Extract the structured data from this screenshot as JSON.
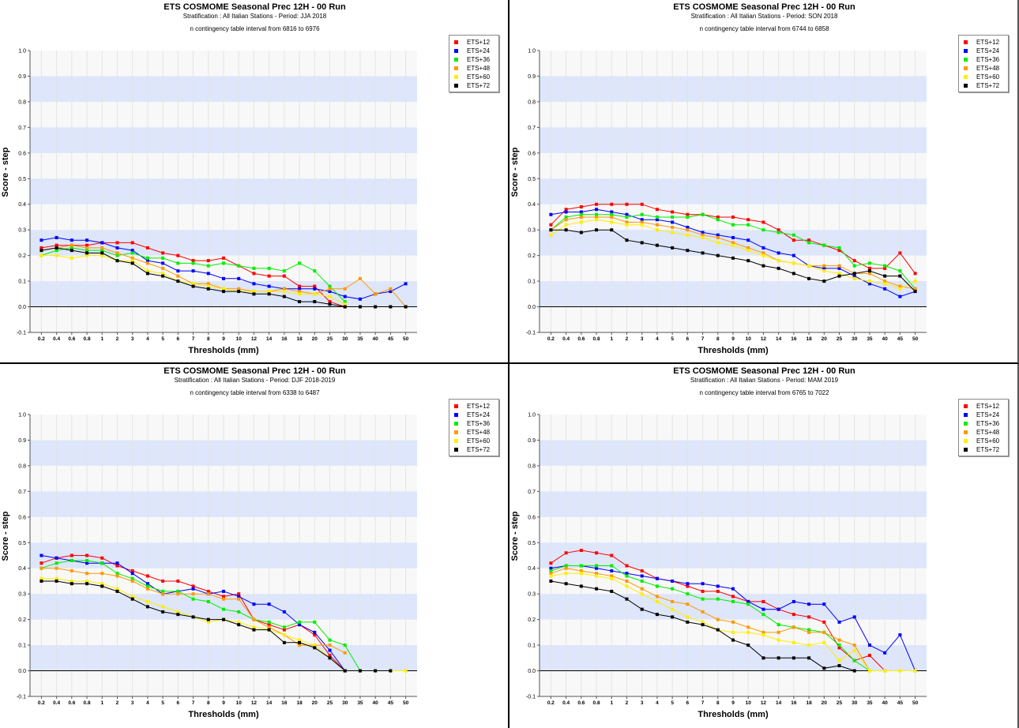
{
  "chart_data": [
    {
      "type": "line",
      "title": "ETS  COSMOME Seasonal Prec 12H - 00 Run",
      "subtitle": "Stratification : All Italian Stations - Period: JJA 2018",
      "note": "n contingency table interval from 6816 to 6976",
      "xlabel": "Thresholds (mm)",
      "ylabel": "Score - step",
      "ylim": [
        -0.1,
        1.0
      ],
      "y_ticks": [
        "-0.1",
        "0.0",
        "0.1",
        "0.2",
        "0.3",
        "0.4",
        "0.5",
        "0.6",
        "0.7",
        "0.8",
        "0.9",
        "1.0"
      ],
      "categories": [
        "0.2",
        "0.4",
        "0.6",
        "0.8",
        "1",
        "2",
        "3",
        "4",
        "5",
        "6",
        "7",
        "8",
        "9",
        "10",
        "12",
        "14",
        "16",
        "18",
        "20",
        "25",
        "30",
        "35",
        "40",
        "45",
        "50"
      ],
      "legend_position": "top-right",
      "series": [
        {
          "name": "ETS+12",
          "color": "#ff0000",
          "values": [
            0.23,
            0.24,
            0.24,
            0.24,
            0.25,
            0.25,
            0.25,
            0.23,
            0.21,
            0.2,
            0.18,
            0.18,
            0.19,
            0.16,
            0.13,
            0.12,
            0.12,
            0.08,
            0.08,
            0.02,
            0,
            null,
            null,
            null,
            null
          ]
        },
        {
          "name": "ETS+24",
          "color": "#0000ff",
          "values": [
            0.26,
            0.27,
            0.26,
            0.26,
            0.25,
            0.23,
            0.22,
            0.18,
            0.17,
            0.14,
            0.14,
            0.13,
            0.11,
            0.11,
            0.09,
            0.08,
            0.07,
            0.07,
            0.07,
            0.06,
            0.04,
            0.03,
            0.05,
            0.06,
            0.09
          ]
        },
        {
          "name": "ETS+36",
          "color": "#00ee00",
          "values": [
            0.2,
            0.22,
            0.23,
            0.22,
            0.22,
            0.2,
            0.21,
            0.19,
            0.19,
            0.17,
            0.17,
            0.16,
            0.17,
            0.16,
            0.15,
            0.15,
            0.14,
            0.17,
            0.14,
            0.08,
            0.02,
            null,
            null,
            null,
            null
          ]
        },
        {
          "name": "ETS+48",
          "color": "#ff9900",
          "values": [
            0.22,
            0.23,
            0.24,
            0.23,
            0.23,
            0.21,
            0.19,
            0.17,
            0.15,
            0.12,
            0.09,
            0.09,
            0.07,
            0.07,
            0.06,
            0.06,
            0.07,
            0.06,
            0.05,
            0.07,
            0.07,
            0.11,
            0.05,
            0.07,
            0
          ]
        },
        {
          "name": "ETS+60",
          "color": "#ffee00",
          "values": [
            0.2,
            0.2,
            0.19,
            0.2,
            0.2,
            0.18,
            0.18,
            0.14,
            0.13,
            0.1,
            0.09,
            0.08,
            0.07,
            0.06,
            0.06,
            0.06,
            0.06,
            0.05,
            0.05,
            0.04,
            0.01,
            null,
            null,
            null,
            null
          ]
        },
        {
          "name": "ETS+72",
          "color": "#000000",
          "values": [
            0.22,
            0.23,
            0.22,
            0.21,
            0.21,
            0.18,
            0.17,
            0.13,
            0.12,
            0.1,
            0.08,
            0.07,
            0.06,
            0.06,
            0.05,
            0.05,
            0.04,
            0.02,
            0.02,
            0.01,
            0,
            0,
            0,
            0,
            0
          ]
        }
      ]
    },
    {
      "type": "line",
      "title": "ETS  COSMOME Seasonal Prec 12H - 00 Run",
      "subtitle": "Stratification : All Italian Stations - Period: SON 2018",
      "note": "n contingency table interval from 6744 to 6858",
      "xlabel": "Thresholds (mm)",
      "ylabel": "Score - step",
      "ylim": [
        -0.1,
        1.0
      ],
      "y_ticks": [
        "-0.1",
        "0.0",
        "0.1",
        "0.2",
        "0.3",
        "0.4",
        "0.5",
        "0.6",
        "0.7",
        "0.8",
        "0.9",
        "1.0"
      ],
      "categories": [
        "0.2",
        "0.4",
        "0.6",
        "0.8",
        "1",
        "2",
        "3",
        "4",
        "5",
        "6",
        "7",
        "8",
        "9",
        "10",
        "12",
        "14",
        "16",
        "18",
        "20",
        "25",
        "30",
        "35",
        "40",
        "45",
        "50"
      ],
      "legend_position": "top-right",
      "series": [
        {
          "name": "ETS+12",
          "color": "#ff0000",
          "values": [
            0.32,
            0.38,
            0.39,
            0.4,
            0.4,
            0.4,
            0.4,
            0.38,
            0.37,
            0.36,
            0.36,
            0.35,
            0.35,
            0.34,
            0.33,
            0.3,
            0.26,
            0.26,
            0.24,
            0.22,
            0.18,
            0.15,
            0.15,
            0.21,
            0.13
          ]
        },
        {
          "name": "ETS+24",
          "color": "#0000ff",
          "values": [
            0.36,
            0.37,
            0.37,
            0.38,
            0.37,
            0.36,
            0.34,
            0.34,
            0.33,
            0.31,
            0.29,
            0.28,
            0.27,
            0.26,
            0.23,
            0.21,
            0.2,
            0.16,
            0.15,
            0.15,
            0.12,
            0.09,
            0.07,
            0.04,
            0.06
          ]
        },
        {
          "name": "ETS+36",
          "color": "#00ee00",
          "values": [
            0.3,
            0.35,
            0.36,
            0.36,
            0.36,
            0.35,
            0.36,
            0.35,
            0.35,
            0.35,
            0.36,
            0.34,
            0.32,
            0.32,
            0.3,
            0.29,
            0.28,
            0.25,
            0.24,
            0.23,
            0.16,
            0.17,
            0.16,
            0.14,
            0.07
          ]
        },
        {
          "name": "ETS+48",
          "color": "#ff9900",
          "values": [
            0.3,
            0.34,
            0.35,
            0.35,
            0.35,
            0.33,
            0.33,
            0.32,
            0.31,
            0.3,
            0.28,
            0.27,
            0.25,
            0.23,
            0.21,
            0.18,
            0.17,
            0.16,
            0.16,
            0.16,
            0.13,
            0.13,
            0.1,
            0.08,
            0.07
          ]
        },
        {
          "name": "ETS+60",
          "color": "#ffee00",
          "values": [
            0.28,
            0.32,
            0.33,
            0.34,
            0.33,
            0.32,
            0.32,
            0.3,
            0.29,
            0.28,
            0.27,
            0.25,
            0.24,
            0.22,
            0.2,
            0.18,
            0.17,
            0.16,
            0.14,
            0.13,
            0.11,
            0.1,
            0.09,
            0.07,
            0.1
          ]
        },
        {
          "name": "ETS+72",
          "color": "#000000",
          "values": [
            0.3,
            0.3,
            0.29,
            0.3,
            0.3,
            0.26,
            0.25,
            0.24,
            0.23,
            0.22,
            0.21,
            0.2,
            0.19,
            0.18,
            0.16,
            0.15,
            0.13,
            0.11,
            0.1,
            0.12,
            0.13,
            0.14,
            0.12,
            0.12,
            0.06
          ]
        }
      ]
    },
    {
      "type": "line",
      "title": "ETS  COSMOME Seasonal Prec 12H - 00 Run",
      "subtitle": "Stratification : All Italian Stations - Period: DJF 2018-2019",
      "note": "n contingency table interval from 6338 to 6487",
      "xlabel": "Thresholds (mm)",
      "ylabel": "Score - step",
      "ylim": [
        -0.1,
        1.0
      ],
      "y_ticks": [
        "-0.1",
        "0.0",
        "0.1",
        "0.2",
        "0.3",
        "0.4",
        "0.5",
        "0.6",
        "0.7",
        "0.8",
        "0.9",
        "1.0"
      ],
      "categories": [
        "0.2",
        "0.4",
        "0.6",
        "0.8",
        "1",
        "2",
        "3",
        "4",
        "5",
        "6",
        "7",
        "8",
        "9",
        "10",
        "12",
        "14",
        "16",
        "18",
        "20",
        "25",
        "30",
        "35",
        "40",
        "45",
        "50"
      ],
      "legend_position": "top-right",
      "series": [
        {
          "name": "ETS+12",
          "color": "#ff0000",
          "values": [
            0.42,
            0.44,
            0.45,
            0.45,
            0.44,
            0.41,
            0.39,
            0.37,
            0.35,
            0.35,
            0.33,
            0.31,
            0.29,
            0.3,
            0.2,
            0.18,
            0.16,
            0.18,
            0.14,
            0.06,
            0,
            null,
            null,
            null,
            null
          ]
        },
        {
          "name": "ETS+24",
          "color": "#0000ff",
          "values": [
            0.45,
            0.44,
            0.43,
            0.42,
            0.42,
            0.42,
            0.38,
            0.34,
            0.3,
            0.31,
            0.32,
            0.3,
            0.31,
            0.29,
            0.26,
            0.26,
            0.23,
            0.18,
            0.15,
            0.08,
            0,
            null,
            null,
            null,
            null
          ]
        },
        {
          "name": "ETS+36",
          "color": "#00ee00",
          "values": [
            0.4,
            0.42,
            0.43,
            0.43,
            0.42,
            0.38,
            0.36,
            0.33,
            0.31,
            0.31,
            0.28,
            0.27,
            0.24,
            0.23,
            0.2,
            0.19,
            0.17,
            0.19,
            0.19,
            0.12,
            0.1,
            0,
            null,
            null,
            null
          ]
        },
        {
          "name": "ETS+48",
          "color": "#ff9900",
          "values": [
            0.4,
            0.4,
            0.39,
            0.38,
            0.38,
            0.37,
            0.35,
            0.32,
            0.3,
            0.3,
            0.3,
            0.3,
            0.28,
            0.28,
            0.2,
            0.17,
            0.14,
            0.1,
            0.1,
            0.1,
            0.07,
            null,
            null,
            null,
            null
          ]
        },
        {
          "name": "ETS+60",
          "color": "#ffee00",
          "values": [
            0.36,
            0.36,
            0.35,
            0.35,
            0.34,
            0.32,
            0.29,
            0.27,
            0.25,
            0.23,
            0.21,
            0.19,
            0.2,
            0.19,
            0.17,
            0.16,
            0.14,
            0.12,
            0.1,
            0.05,
            0,
            0,
            0,
            0,
            0
          ]
        },
        {
          "name": "ETS+72",
          "color": "#000000",
          "values": [
            0.35,
            0.35,
            0.34,
            0.34,
            0.33,
            0.31,
            0.28,
            0.25,
            0.23,
            0.22,
            0.21,
            0.2,
            0.2,
            0.18,
            0.16,
            0.16,
            0.11,
            0.11,
            0.09,
            0.05,
            0,
            0,
            0,
            0,
            null
          ]
        }
      ]
    },
    {
      "type": "line",
      "title": "ETS  COSMOME Seasonal Prec 12H - 00 Run",
      "subtitle": "Stratification : All Italian Stations - Period: MAM 2019",
      "note": "n contingency table interval from 6765 to 7022",
      "xlabel": "Thresholds (mm)",
      "ylabel": "Score - step",
      "ylim": [
        -0.1,
        1.0
      ],
      "y_ticks": [
        "-0.1",
        "0.0",
        "0.1",
        "0.2",
        "0.3",
        "0.4",
        "0.5",
        "0.6",
        "0.7",
        "0.8",
        "0.9",
        "1.0"
      ],
      "categories": [
        "0.2",
        "0.4",
        "0.6",
        "0.8",
        "1",
        "2",
        "3",
        "4",
        "5",
        "6",
        "7",
        "8",
        "9",
        "10",
        "12",
        "14",
        "16",
        "18",
        "20",
        "25",
        "30",
        "35",
        "40",
        "45",
        "50"
      ],
      "legend_position": "top-right",
      "series": [
        {
          "name": "ETS+12",
          "color": "#ff0000",
          "values": [
            0.42,
            0.46,
            0.47,
            0.46,
            0.45,
            0.41,
            0.39,
            0.36,
            0.35,
            0.33,
            0.31,
            0.31,
            0.29,
            0.27,
            0.27,
            0.24,
            0.22,
            0.21,
            0.19,
            0.09,
            0.04,
            0.06,
            0,
            null,
            null
          ]
        },
        {
          "name": "ETS+24",
          "color": "#0000ff",
          "values": [
            0.4,
            0.41,
            0.41,
            0.4,
            0.39,
            0.38,
            0.37,
            0.36,
            0.35,
            0.34,
            0.34,
            0.33,
            0.32,
            0.27,
            0.24,
            0.24,
            0.27,
            0.26,
            0.26,
            0.19,
            0.21,
            0.1,
            0.07,
            0.14,
            0
          ]
        },
        {
          "name": "ETS+36",
          "color": "#00ee00",
          "values": [
            0.39,
            0.41,
            0.41,
            0.41,
            0.41,
            0.37,
            0.35,
            0.33,
            0.32,
            0.3,
            0.28,
            0.28,
            0.27,
            0.26,
            0.22,
            0.18,
            0.17,
            0.16,
            0.15,
            0.1,
            0.04,
            0,
            null,
            null,
            null
          ]
        },
        {
          "name": "ETS+48",
          "color": "#ff9900",
          "values": [
            0.38,
            0.4,
            0.39,
            0.38,
            0.37,
            0.35,
            0.32,
            0.29,
            0.27,
            0.26,
            0.23,
            0.2,
            0.19,
            0.17,
            0.15,
            0.15,
            0.17,
            0.15,
            0.15,
            0.12,
            0.1,
            0,
            0,
            null,
            null
          ]
        },
        {
          "name": "ETS+60",
          "color": "#ffee00",
          "values": [
            0.37,
            0.38,
            0.38,
            0.37,
            0.36,
            0.33,
            0.3,
            0.27,
            0.24,
            0.21,
            0.19,
            0.16,
            0.15,
            0.15,
            0.14,
            0.12,
            0.11,
            0.1,
            0.11,
            0.04,
            0.08,
            0,
            0,
            0,
            0
          ]
        },
        {
          "name": "ETS+72",
          "color": "#000000",
          "values": [
            0.35,
            0.34,
            0.33,
            0.32,
            0.31,
            0.28,
            0.24,
            0.22,
            0.21,
            0.19,
            0.18,
            0.16,
            0.12,
            0.1,
            0.05,
            0.05,
            0.05,
            0.05,
            0.01,
            0.02,
            0,
            null,
            null,
            null,
            null
          ]
        }
      ]
    }
  ]
}
